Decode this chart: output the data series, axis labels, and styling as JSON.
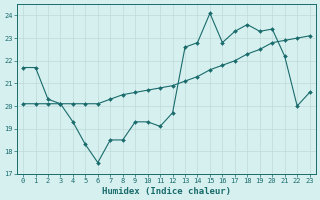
{
  "line1_x": [
    0,
    1,
    2,
    3,
    4,
    5,
    6,
    7,
    8,
    9,
    10,
    11,
    12,
    13,
    14,
    15,
    16,
    17,
    18,
    19,
    20,
    21,
    22,
    23
  ],
  "line1_y": [
    21.7,
    21.7,
    20.3,
    20.1,
    19.3,
    18.3,
    17.5,
    18.5,
    18.5,
    19.3,
    19.3,
    19.1,
    19.7,
    22.6,
    22.8,
    24.1,
    22.8,
    23.3,
    23.6,
    23.3,
    23.4,
    22.2,
    20.0,
    20.6
  ],
  "line2_x": [
    0,
    1,
    2,
    3,
    4,
    5,
    6,
    7,
    8,
    9,
    10,
    11,
    12,
    13,
    14,
    15,
    16,
    17,
    18,
    19,
    20,
    21,
    22,
    23
  ],
  "line2_y": [
    20.1,
    20.1,
    20.1,
    20.1,
    20.1,
    20.1,
    20.1,
    20.3,
    20.5,
    20.6,
    20.7,
    20.8,
    20.9,
    21.1,
    21.3,
    21.6,
    21.8,
    22.0,
    22.3,
    22.5,
    22.8,
    22.9,
    23.0,
    23.1
  ],
  "line_color": "#1a6b6b",
  "bg_color": "#d6f0f0",
  "grid_color": "#c0dada",
  "xlabel": "Humidex (Indice chaleur)",
  "ylim": [
    17,
    24.5
  ],
  "yticks": [
    17,
    18,
    19,
    20,
    21,
    22,
    23,
    24
  ],
  "xlim": [
    -0.5,
    23.5
  ],
  "xticks": [
    0,
    1,
    2,
    3,
    4,
    5,
    6,
    7,
    8,
    9,
    10,
    11,
    12,
    13,
    14,
    15,
    16,
    17,
    18,
    19,
    20,
    21,
    22,
    23
  ],
  "tick_fontsize": 5.0,
  "xlabel_fontsize": 6.5
}
